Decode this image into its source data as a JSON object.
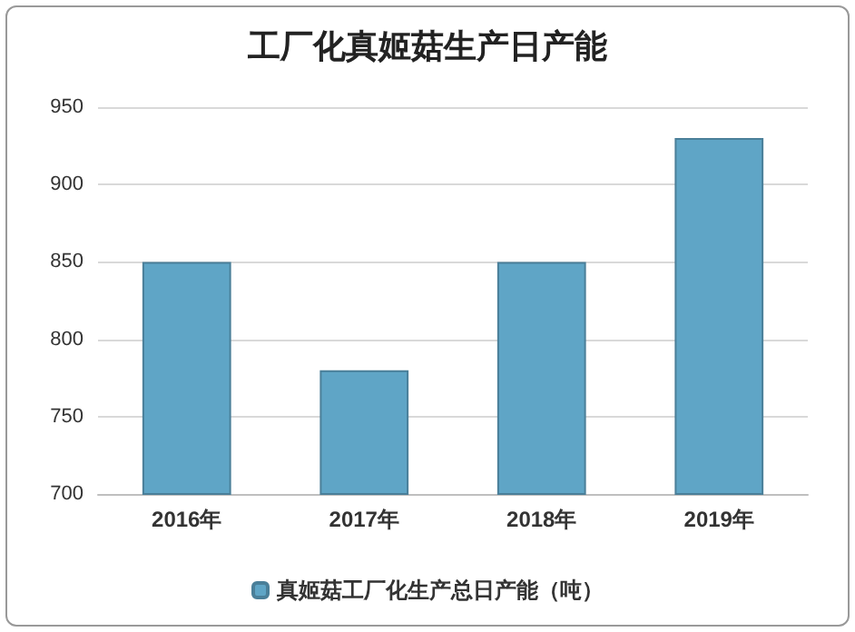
{
  "chart_data": {
    "type": "bar",
    "title": "工厂化真姬菇生产日产能",
    "categories": [
      "2016年",
      "2017年",
      "2018年",
      "2019年"
    ],
    "series": [
      {
        "name": "真姬菇工厂化生产总日产能（吨）",
        "color": "#5fa5c6",
        "values": [
          850,
          780,
          850,
          930
        ]
      }
    ],
    "ylim": [
      700,
      950
    ],
    "yticks": [
      700,
      750,
      800,
      850,
      900,
      950
    ],
    "grid": "y",
    "legend": "bottom"
  }
}
